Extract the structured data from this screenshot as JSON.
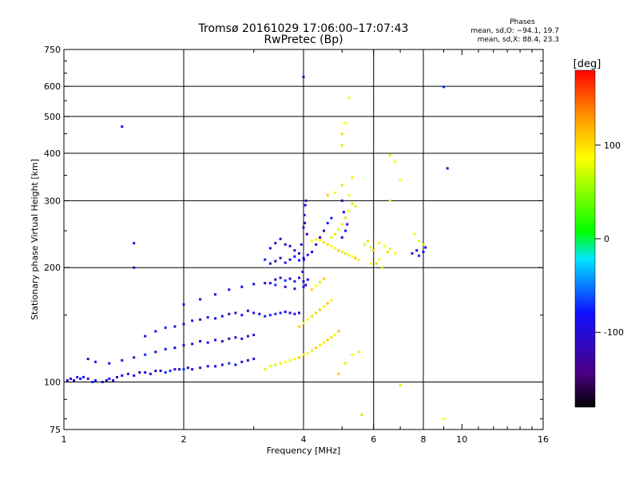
{
  "chart_data": {
    "type": "scatter",
    "title": "Tromsø 20161029 17:06:00–17:07:43",
    "subtitle": "RwPretec (Bp)",
    "xlabel": "Frequency [MHz]",
    "ylabel": "Stationary phase Virtual Height [km]",
    "x_scale": "log",
    "y_scale": "log",
    "xlim": [
      1,
      16
    ],
    "ylim": [
      75,
      750
    ],
    "x_ticks": [
      1,
      2,
      4,
      6,
      8,
      10,
      16
    ],
    "x_tick_labels": [
      "1",
      "2",
      "4",
      "6",
      "8",
      "10",
      "16"
    ],
    "x_gridlines": [
      2,
      4,
      6,
      8
    ],
    "y_ticks": [
      75,
      100,
      200,
      300,
      400,
      500,
      600,
      750
    ],
    "y_tick_labels": [
      "75",
      "100",
      "200",
      "300",
      "400",
      "500",
      "600",
      "750"
    ],
    "y_gridlines": [
      100,
      200,
      300,
      400,
      500,
      600
    ],
    "grid": true,
    "colorbar": {
      "unit": "[deg]",
      "range": [
        -180,
        180
      ],
      "ticks": [
        100,
        0,
        -100
      ],
      "tick_labels": [
        "100",
        "0",
        "-100"
      ],
      "colormap": [
        "#000000",
        "#4b0082",
        "#1010ff",
        "#00e5ff",
        "#00ff00",
        "#ffff00",
        "#ff9900",
        "#ff0000"
      ]
    },
    "stats": {
      "heading": "Phases",
      "line_o": "mean, sd,O: −94.1, 19.7",
      "line_x": "mean, sd,X:  88.4, 23.3"
    },
    "series": [
      {
        "mode": "O",
        "phase_mean": -94.1,
        "points": [
          [
            1.02,
            101
          ],
          [
            1.04,
            102
          ],
          [
            1.06,
            101
          ],
          [
            1.08,
            103
          ],
          [
            1.1,
            102
          ],
          [
            1.12,
            103
          ],
          [
            1.15,
            102
          ],
          [
            1.18,
            100
          ],
          [
            1.2,
            101
          ],
          [
            1.25,
            100
          ],
          [
            1.28,
            101
          ],
          [
            1.3,
            102
          ],
          [
            1.33,
            101
          ],
          [
            1.36,
            103
          ],
          [
            1.4,
            104
          ],
          [
            1.45,
            105
          ],
          [
            1.5,
            104
          ],
          [
            1.55,
            106
          ],
          [
            1.6,
            106
          ],
          [
            1.65,
            105
          ],
          [
            1.7,
            107
          ],
          [
            1.75,
            107
          ],
          [
            1.8,
            106
          ],
          [
            1.85,
            107
          ],
          [
            1.9,
            108
          ],
          [
            1.95,
            108
          ],
          [
            2.0,
            108
          ],
          [
            2.05,
            109
          ],
          [
            2.1,
            108
          ],
          [
            2.2,
            109
          ],
          [
            2.3,
            110
          ],
          [
            2.4,
            110
          ],
          [
            2.5,
            111
          ],
          [
            2.6,
            112
          ],
          [
            2.7,
            111
          ],
          [
            2.8,
            113
          ],
          [
            2.9,
            114
          ],
          [
            3.0,
            115
          ],
          [
            1.15,
            115
          ],
          [
            1.2,
            113
          ],
          [
            1.3,
            112
          ],
          [
            1.4,
            114
          ],
          [
            1.5,
            116
          ],
          [
            1.6,
            118
          ],
          [
            1.7,
            120
          ],
          [
            1.8,
            122
          ],
          [
            1.9,
            123
          ],
          [
            2.0,
            125
          ],
          [
            2.1,
            126
          ],
          [
            2.2,
            128
          ],
          [
            2.3,
            127
          ],
          [
            2.4,
            129
          ],
          [
            2.5,
            128
          ],
          [
            2.6,
            130
          ],
          [
            2.7,
            131
          ],
          [
            2.8,
            130
          ],
          [
            2.9,
            132
          ],
          [
            3.0,
            133
          ],
          [
            1.6,
            132
          ],
          [
            1.7,
            136
          ],
          [
            1.8,
            139
          ],
          [
            1.9,
            140
          ],
          [
            2.0,
            142
          ],
          [
            2.1,
            145
          ],
          [
            2.2,
            146
          ],
          [
            2.3,
            148
          ],
          [
            2.4,
            147
          ],
          [
            2.5,
            149
          ],
          [
            2.6,
            151
          ],
          [
            2.7,
            152
          ],
          [
            2.8,
            150
          ],
          [
            2.9,
            154
          ],
          [
            3.0,
            152
          ],
          [
            3.1,
            151
          ],
          [
            3.2,
            149
          ],
          [
            3.3,
            150
          ],
          [
            3.4,
            151
          ],
          [
            3.5,
            152
          ],
          [
            3.6,
            153
          ],
          [
            3.7,
            152
          ],
          [
            3.8,
            151
          ],
          [
            3.9,
            152
          ],
          [
            2.0,
            160
          ],
          [
            2.2,
            165
          ],
          [
            2.4,
            170
          ],
          [
            2.6,
            175
          ],
          [
            2.8,
            178
          ],
          [
            3.0,
            181
          ],
          [
            3.2,
            182
          ],
          [
            3.4,
            180
          ],
          [
            3.6,
            178
          ],
          [
            3.8,
            176
          ],
          [
            3.3,
            182
          ],
          [
            3.4,
            186
          ],
          [
            3.5,
            188
          ],
          [
            3.6,
            185
          ],
          [
            3.7,
            187
          ],
          [
            3.8,
            184
          ],
          [
            3.9,
            188
          ],
          [
            4.0,
            184
          ],
          [
            4.05,
            180
          ],
          [
            4.1,
            186
          ],
          [
            3.2,
            210
          ],
          [
            3.3,
            205
          ],
          [
            3.4,
            208
          ],
          [
            3.5,
            212
          ],
          [
            3.6,
            206
          ],
          [
            3.7,
            210
          ],
          [
            3.8,
            214
          ],
          [
            3.9,
            209
          ],
          [
            4.0,
            212
          ],
          [
            4.1,
            216
          ],
          [
            4.2,
            220
          ],
          [
            4.3,
            230
          ],
          [
            4.4,
            240
          ],
          [
            4.5,
            250
          ],
          [
            4.6,
            262
          ],
          [
            4.7,
            270
          ],
          [
            3.3,
            225
          ],
          [
            3.4,
            232
          ],
          [
            3.5,
            238
          ],
          [
            3.6,
            230
          ],
          [
            3.7,
            228
          ],
          [
            3.8,
            222
          ],
          [
            3.9,
            218
          ],
          [
            3.95,
            230
          ],
          [
            4.0,
            255
          ],
          [
            4.02,
            275
          ],
          [
            4.04,
            292
          ],
          [
            4.06,
            300
          ],
          [
            4.03,
            262
          ],
          [
            4.08,
            245
          ],
          [
            4.01,
            210
          ],
          [
            3.98,
            195
          ],
          [
            4.0,
            178
          ],
          [
            5.0,
            300
          ],
          [
            5.05,
            280
          ],
          [
            5.1,
            270
          ],
          [
            5.15,
            260
          ],
          [
            5.1,
            250
          ],
          [
            5.0,
            240
          ],
          [
            7.5,
            218
          ],
          [
            7.7,
            222
          ],
          [
            7.8,
            215
          ],
          [
            8.0,
            220
          ],
          [
            8.1,
            226
          ],
          [
            1.4,
            470
          ],
          [
            1.5,
            232
          ],
          [
            1.5,
            200
          ],
          [
            9.0,
            598
          ],
          [
            9.2,
            365
          ],
          [
            4.0,
            635
          ]
        ]
      },
      {
        "mode": "X",
        "phase_mean": 88.4,
        "points": [
          [
            3.2,
            108
          ],
          [
            3.3,
            110
          ],
          [
            3.4,
            111
          ],
          [
            3.5,
            112
          ],
          [
            3.6,
            113
          ],
          [
            3.7,
            114
          ],
          [
            3.8,
            115
          ],
          [
            3.9,
            116
          ],
          [
            4.0,
            118
          ],
          [
            4.1,
            119
          ],
          [
            4.2,
            121
          ],
          [
            4.3,
            123
          ],
          [
            4.4,
            125
          ],
          [
            4.5,
            127
          ],
          [
            4.6,
            129
          ],
          [
            4.7,
            131
          ],
          [
            4.8,
            133
          ],
          [
            4.9,
            136
          ],
          [
            3.9,
            140
          ],
          [
            4.0,
            143
          ],
          [
            4.1,
            146
          ],
          [
            4.2,
            149
          ],
          [
            4.3,
            152
          ],
          [
            4.4,
            155
          ],
          [
            4.5,
            158
          ],
          [
            4.6,
            161
          ],
          [
            4.7,
            164
          ],
          [
            4.2,
            175
          ],
          [
            4.3,
            179
          ],
          [
            4.4,
            183
          ],
          [
            4.5,
            187
          ],
          [
            4.2,
            235
          ],
          [
            4.3,
            237
          ],
          [
            4.4,
            236
          ],
          [
            4.5,
            233
          ],
          [
            4.6,
            230
          ],
          [
            4.7,
            228
          ],
          [
            4.8,
            225
          ],
          [
            4.9,
            222
          ],
          [
            5.0,
            220
          ],
          [
            5.1,
            218
          ],
          [
            5.2,
            216
          ],
          [
            5.3,
            214
          ],
          [
            5.4,
            212
          ],
          [
            5.5,
            210
          ],
          [
            4.7,
            240
          ],
          [
            4.8,
            245
          ],
          [
            4.9,
            252
          ],
          [
            5.0,
            260
          ],
          [
            5.1,
            270
          ],
          [
            5.2,
            282
          ],
          [
            5.3,
            295
          ],
          [
            4.6,
            310
          ],
          [
            4.8,
            315
          ],
          [
            5.0,
            330
          ],
          [
            5.2,
            310
          ],
          [
            5.4,
            290
          ],
          [
            5.3,
            345
          ],
          [
            5.7,
            230
          ],
          [
            5.8,
            235
          ],
          [
            5.9,
            226
          ],
          [
            6.0,
            222
          ],
          [
            6.2,
            232
          ],
          [
            6.4,
            228
          ],
          [
            6.5,
            220
          ],
          [
            6.6,
            224
          ],
          [
            6.8,
            218
          ],
          [
            5.9,
            205
          ],
          [
            6.1,
            205
          ],
          [
            6.2,
            210
          ],
          [
            6.3,
            200
          ],
          [
            6.6,
            300
          ],
          [
            6.8,
            380
          ],
          [
            6.6,
            395
          ],
          [
            7.0,
            340
          ],
          [
            7.6,
            245
          ],
          [
            7.8,
            235
          ],
          [
            8.0,
            230
          ],
          [
            5.0,
            420
          ],
          [
            5.0,
            450
          ],
          [
            5.1,
            480
          ],
          [
            5.2,
            560
          ],
          [
            4.9,
            105
          ],
          [
            5.1,
            112
          ],
          [
            5.3,
            118
          ],
          [
            5.5,
            120
          ],
          [
            9.0,
            80
          ],
          [
            5.6,
            82
          ],
          [
            7.0,
            98
          ]
        ]
      }
    ]
  }
}
